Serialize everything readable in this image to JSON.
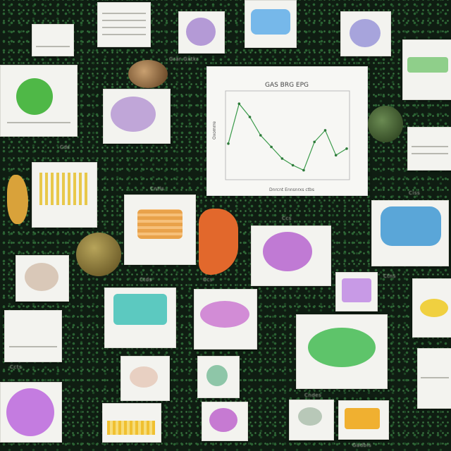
{
  "scene": {
    "description_colors": {
      "background": "#0f1d12",
      "dots": "#2f6b37",
      "card": "#f3f3ef",
      "line": "#3a9a4a"
    },
    "main_chart": {
      "title": "GAS BRG EPG",
      "ylabel": "Oxomrre",
      "xlabel": "Dnrcnt Ennsnrxs ctbs"
    },
    "captions": [
      "Grar Gxtkr",
      "Cds",
      "Cntls",
      "Ccs",
      "Ciss",
      "Ctds",
      "Ccs",
      "Ctns",
      "Ccts",
      "Cndes",
      "Gadbls"
    ]
  },
  "chart_data": {
    "type": "line",
    "title": "GAS BRG EPG",
    "xlabel": "Dnrcnt Ennsnrxs ctbs",
    "ylabel": "Oxomrre",
    "x": [
      1,
      2,
      3,
      4,
      5,
      6,
      7,
      8,
      9,
      10,
      11,
      12
    ],
    "values": [
      40,
      88,
      72,
      50,
      36,
      22,
      14,
      8,
      42,
      56,
      26,
      34
    ],
    "ylim": [
      0,
      100
    ],
    "grid": false
  }
}
